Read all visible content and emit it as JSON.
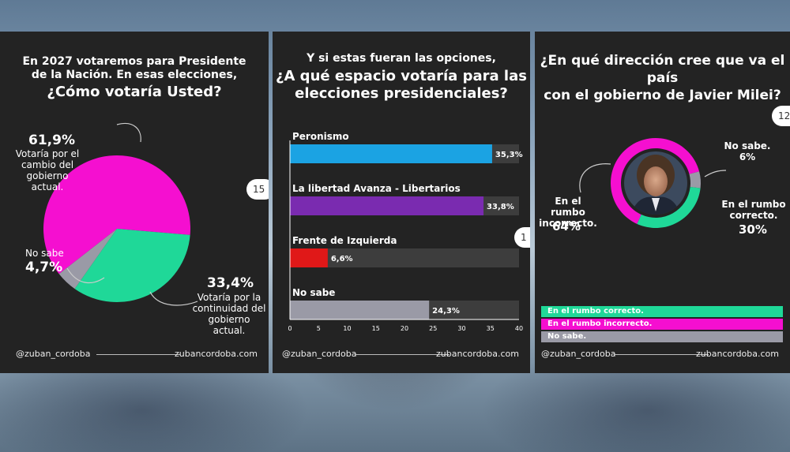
{
  "panel1": {
    "title_line1": "En 2027 votaremos para Presidente",
    "title_line2": "de la Nación. En esas elecciones,",
    "question": "¿Cómo votaría Usted?",
    "footer_left": "@zuban_cordoba",
    "footer_right": "zubancordoba.com",
    "pager": "15"
  },
  "panel2": {
    "title_line1": "Y si estas fueran las opciones,",
    "question_line1": "¿A qué espacio votaría para las",
    "question_line2": "elecciones presidenciales?",
    "footer_left": "@zuban_cordoba",
    "footer_right": "zubancordoba.com",
    "pager": "1"
  },
  "panel3": {
    "question_line1": "¿En qué dirección cree que va el país",
    "question_line2": "con el gobierno de Javier Milei?",
    "footer_left": "@zuban_cordoba",
    "footer_right": "zubancordoba.com",
    "pager": "12"
  },
  "chart_data": [
    {
      "type": "pie",
      "slices": [
        {
          "value_label": "61,9%",
          "label_lines": [
            "Votaría por el",
            "cambio del",
            "gobierno",
            "actual."
          ],
          "value": 61.9,
          "color": "#f50fd0"
        },
        {
          "value_label": "33,4%",
          "label_lines": [
            "Votaría por la",
            "continuidad del",
            "gobierno",
            "actual."
          ],
          "value": 33.4,
          "color": "#1fd898"
        },
        {
          "value_label": "4,7%",
          "label_lines": [
            "No sabe"
          ],
          "value": 4.7,
          "color": "#9a9aa6"
        }
      ]
    },
    {
      "type": "bar",
      "orientation": "horizontal",
      "categories": [
        "Peronismo",
        "La libertad Avanza - Libertarios",
        "Frente de Izquierda",
        "No sabe"
      ],
      "values": [
        35.3,
        33.8,
        6.6,
        24.3
      ],
      "value_labels": [
        "35,3%",
        "33,8%",
        "6,6%",
        "24,3%"
      ],
      "colors": [
        "#1ba3e3",
        "#7a2bb0",
        "#e01818",
        "#9a9aa6"
      ],
      "xlim": [
        0,
        40
      ],
      "xticks": [
        "0",
        "5",
        "10",
        "15",
        "20",
        "25",
        "30",
        "35",
        "40"
      ]
    },
    {
      "type": "pie",
      "style": "donut",
      "slices": [
        {
          "name": "En el rumbo correcto.",
          "value": 30,
          "label_lines": [
            "En el rumbo",
            "correcto."
          ],
          "value_label": "30%",
          "color": "#1fd898"
        },
        {
          "name": "En el rumbo incorrecto.",
          "value": 64,
          "label_lines": [
            "En el rumbo",
            "incorrecto."
          ],
          "value_label": "64%",
          "color": "#f50fd0"
        },
        {
          "name": "No sabe.",
          "value": 6,
          "label_lines": [
            "No sabe."
          ],
          "value_label": "6%",
          "color": "#9a9aa6"
        }
      ],
      "legend": [
        "En el rumbo correcto.",
        "En el rumbo incorrecto.",
        "No sabe."
      ]
    }
  ]
}
